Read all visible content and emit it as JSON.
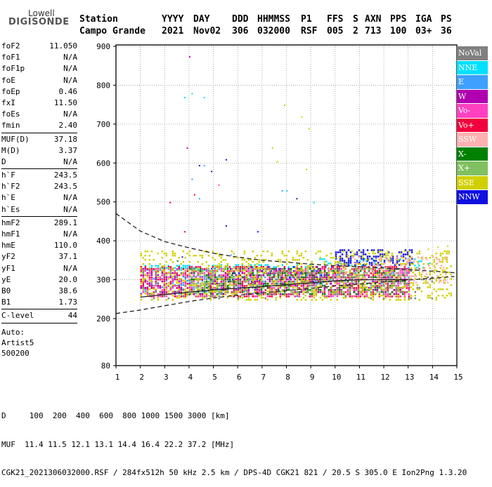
{
  "logo": {
    "top": "Lowell",
    "bottom": "DIGISONDE"
  },
  "header": {
    "row1": [
      "Station",
      "YYYY",
      "DAY",
      "DDD",
      "HHMMSS",
      "P1",
      "FFS",
      "S",
      "AXN",
      "PPS",
      "IGA",
      "PS"
    ],
    "row2": [
      "Campo Grande",
      "2021",
      "Nov02",
      "306",
      "032000",
      "RSF",
      "005",
      "2",
      "713",
      "100",
      "03+",
      "36"
    ]
  },
  "params": {
    "group1": [
      {
        "label": "foF2",
        "value": "11.050"
      },
      {
        "label": "foF1",
        "value": "N/A"
      },
      {
        "label": "foF1p",
        "value": "N/A"
      },
      {
        "label": "foE",
        "value": "N/A"
      },
      {
        "label": "foEp",
        "value": "0.46"
      },
      {
        "label": "fxI",
        "value": "11.50"
      },
      {
        "label": "foEs",
        "value": "N/A"
      },
      {
        "label": "fmin",
        "value": "2.40"
      }
    ],
    "group2": [
      {
        "label": "MUF(D)",
        "value": "37.18"
      },
      {
        "label": "M(D)",
        "value": "3.37"
      },
      {
        "label": "D",
        "value": "N/A"
      }
    ],
    "group3": [
      {
        "label": "h`F",
        "value": "243.5"
      },
      {
        "label": "h`F2",
        "value": "243.5"
      },
      {
        "label": "h`E",
        "value": "N/A"
      },
      {
        "label": "h`Es",
        "value": "N/A"
      }
    ],
    "group4": [
      {
        "label": "hmF2",
        "value": "289.1"
      },
      {
        "label": "hmF1",
        "value": "N/A"
      },
      {
        "label": "hmE",
        "value": "110.0"
      },
      {
        "label": "yF2",
        "value": "37.1"
      },
      {
        "label": "yF1",
        "value": "N/A"
      },
      {
        "label": "yE",
        "value": "20.0"
      },
      {
        "label": "B0",
        "value": "38.6"
      },
      {
        "label": "B1",
        "value": "1.73"
      }
    ],
    "group5": [
      {
        "label": "C-level",
        "value": "44"
      }
    ],
    "auto": [
      "Auto:",
      "Artist5",
      "500200"
    ]
  },
  "legend": [
    {
      "label": "NoVal",
      "color": "#808080"
    },
    {
      "label": "NNE",
      "color": "#00e0ff"
    },
    {
      "label": "E",
      "color": "#3fa0ff"
    },
    {
      "label": "W",
      "color": "#b000b0"
    },
    {
      "label": "Vo-",
      "color": "#ff40c0"
    },
    {
      "label": "Vo+",
      "color": "#f0003c"
    },
    {
      "label": "SSW",
      "color": "#ffb0b0"
    },
    {
      "label": "X-",
      "color": "#008000"
    },
    {
      "label": "X+",
      "color": "#80c060"
    },
    {
      "label": "SSE",
      "color": "#d0d000"
    },
    {
      "label": "NNW",
      "color": "#1010e0"
    }
  ],
  "footer": {
    "line1": "D     100  200  400  600  800 1000 1500 3000 [km]",
    "line2": "MUF  11.4 11.5 12.1 13.1 14.4 16.4 22.2 37.2 [MHz]",
    "line3": "CGK21_2021306032000.RSF / 284fx512h 50 kHz 2.5 km / DPS-4D CGK21 821 / 20.5 S 305.0 E Ion2Png 1.3.20"
  },
  "chart_data": {
    "type": "scatter",
    "xlim": [
      1,
      15
    ],
    "ylim": [
      80,
      900
    ],
    "x_ticks": [
      "1",
      "2",
      "3",
      "4",
      "5",
      "6",
      "7",
      "8",
      "9",
      "10",
      "11",
      "12",
      "13",
      "14",
      "15"
    ],
    "y_ticks": [
      "80",
      "200",
      "300",
      "400",
      "500",
      "600",
      "700",
      "800",
      "900"
    ],
    "grid": "dotted",
    "traces": [
      {
        "color": "#00e0ff",
        "x0": 2.0,
        "x1": 5.2,
        "y0": 322,
        "y1": 338,
        "density": 0.55
      },
      {
        "color": "#00e0ff",
        "x0": 5.2,
        "x1": 9.0,
        "y0": 328,
        "y1": 340,
        "density": 0.35
      },
      {
        "color": "#00e0ff",
        "x0": 9.0,
        "x1": 14.0,
        "y0": 330,
        "y1": 355,
        "density": 0.12
      },
      {
        "color": "#3fa0ff",
        "x0": 2.0,
        "x1": 7.0,
        "y0": 262,
        "y1": 310,
        "density": 0.3
      },
      {
        "color": "#3fa0ff",
        "x0": 7.0,
        "x1": 13.0,
        "y0": 290,
        "y1": 330,
        "density": 0.25
      },
      {
        "color": "#1010e0",
        "x0": 10.0,
        "x1": 13.2,
        "y0": 335,
        "y1": 378,
        "density": 0.45
      },
      {
        "color": "#1010e0",
        "x0": 5.5,
        "x1": 10.0,
        "y0": 295,
        "y1": 335,
        "density": 0.12
      },
      {
        "color": "#f0003c",
        "x0": 2.0,
        "x1": 13.0,
        "y0": 258,
        "y1": 335,
        "density": 0.35
      },
      {
        "color": "#ff40c0",
        "x0": 2.0,
        "x1": 13.0,
        "y0": 255,
        "y1": 330,
        "density": 0.25
      },
      {
        "color": "#b000b0",
        "x0": 2.0,
        "x1": 13.0,
        "y0": 265,
        "y1": 330,
        "density": 0.18
      },
      {
        "color": "#008000",
        "x0": 4.0,
        "x1": 13.0,
        "y0": 265,
        "y1": 330,
        "density": 0.2
      },
      {
        "color": "#80c060",
        "x0": 4.0,
        "x1": 13.0,
        "y0": 270,
        "y1": 330,
        "density": 0.14
      },
      {
        "color": "#d0d000",
        "x0": 2.0,
        "x1": 14.8,
        "y0": 250,
        "y1": 375,
        "density": 0.22
      },
      {
        "color": "#ffb0b0",
        "x0": 10.0,
        "x1": 14.6,
        "y0": 290,
        "y1": 360,
        "density": 0.2
      },
      {
        "color": "#808080",
        "x0": 2.0,
        "x1": 14.0,
        "y0": 250,
        "y1": 330,
        "density": 0.08
      }
    ],
    "isolated": [
      {
        "color": "#b000b0",
        "x": 4.0,
        "y": 875
      },
      {
        "color": "#b000b0",
        "x": 3.9,
        "y": 640
      },
      {
        "color": "#00e0ff",
        "x": 3.8,
        "y": 770
      },
      {
        "color": "#00e0ff",
        "x": 4.1,
        "y": 780
      },
      {
        "color": "#00e0ff",
        "x": 4.6,
        "y": 770
      },
      {
        "color": "#d0d000",
        "x": 7.9,
        "y": 750
      },
      {
        "color": "#d0d000",
        "x": 8.6,
        "y": 720
      },
      {
        "color": "#d0d000",
        "x": 8.9,
        "y": 690
      },
      {
        "color": "#d0d000",
        "x": 7.4,
        "y": 640
      },
      {
        "color": "#d0d000",
        "x": 7.6,
        "y": 605
      },
      {
        "color": "#d0d000",
        "x": 8.8,
        "y": 585
      },
      {
        "color": "#1010e0",
        "x": 4.4,
        "y": 595
      },
      {
        "color": "#1010e0",
        "x": 4.9,
        "y": 580
      },
      {
        "color": "#1010e0",
        "x": 5.5,
        "y": 610
      },
      {
        "color": "#1010e0",
        "x": 5.5,
        "y": 440
      },
      {
        "color": "#1010e0",
        "x": 6.8,
        "y": 425
      },
      {
        "color": "#f0003c",
        "x": 3.2,
        "y": 500
      },
      {
        "color": "#f0003c",
        "x": 4.2,
        "y": 520
      },
      {
        "color": "#f0003c",
        "x": 3.8,
        "y": 425
      },
      {
        "color": "#ff40c0",
        "x": 5.2,
        "y": 545
      },
      {
        "color": "#3fa0ff",
        "x": 4.1,
        "y": 560
      },
      {
        "color": "#3fa0ff",
        "x": 4.6,
        "y": 595
      },
      {
        "color": "#3fa0ff",
        "x": 4.4,
        "y": 510
      },
      {
        "color": "#3fa0ff",
        "x": 7.8,
        "y": 530
      },
      {
        "color": "#00e0ff",
        "x": 8.0,
        "y": 530
      },
      {
        "color": "#00e0ff",
        "x": 9.1,
        "y": 500
      },
      {
        "color": "#1010e0",
        "x": 8.4,
        "y": 510
      },
      {
        "color": "#d0d000",
        "x": 14.2,
        "y": 385
      },
      {
        "color": "#d0d000",
        "x": 14.6,
        "y": 388
      },
      {
        "color": "#d0d000",
        "x": 13.8,
        "y": 380
      },
      {
        "color": "#1010e0",
        "x": 3.7,
        "y": 360
      },
      {
        "color": "#3fa0ff",
        "x": 5.7,
        "y": 365
      },
      {
        "color": "#1010e0",
        "x": 4.9,
        "y": 330
      },
      {
        "color": "#008000",
        "x": 3.5,
        "y": 350
      }
    ],
    "profile": [
      [
        2.0,
        255
      ],
      [
        3.0,
        262
      ],
      [
        4.0,
        268
      ],
      [
        5.0,
        274
      ],
      [
        6.0,
        278
      ],
      [
        7.0,
        282
      ],
      [
        8.0,
        287
      ],
      [
        9.0,
        292
      ],
      [
        10.0,
        297
      ],
      [
        11.0,
        300
      ],
      [
        12.0,
        300
      ],
      [
        13.0,
        300
      ]
    ],
    "ref_upper_dashed": [
      [
        1.0,
        470
      ],
      [
        2.0,
        425
      ],
      [
        3.0,
        398
      ],
      [
        4.0,
        382
      ],
      [
        5.0,
        368
      ],
      [
        6.0,
        358
      ],
      [
        7.0,
        350
      ],
      [
        8.0,
        345
      ],
      [
        9.0,
        340
      ],
      [
        10.0,
        336
      ],
      [
        11.0,
        333
      ],
      [
        12.0,
        330
      ],
      [
        13.0,
        326
      ],
      [
        14.0,
        322
      ],
      [
        14.9,
        318
      ]
    ],
    "ref_lower_dashed": [
      [
        1.0,
        213
      ],
      [
        2.0,
        222
      ],
      [
        3.0,
        233
      ],
      [
        4.0,
        244
      ],
      [
        5.0,
        253
      ],
      [
        6.0,
        260
      ],
      [
        7.0,
        266
      ],
      [
        8.0,
        272
      ],
      [
        9.0,
        278
      ],
      [
        10.0,
        284
      ],
      [
        11.0,
        289
      ],
      [
        12.0,
        294
      ],
      [
        13.0,
        299
      ],
      [
        14.0,
        304
      ],
      [
        14.9,
        308
      ]
    ]
  }
}
